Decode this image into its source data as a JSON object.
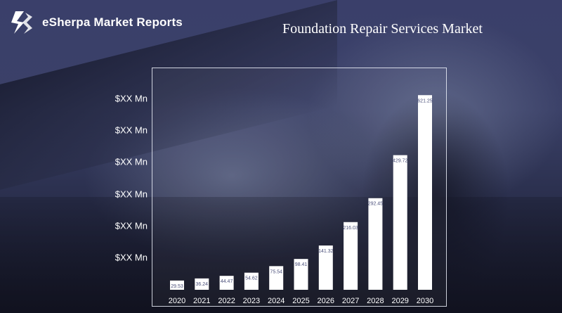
{
  "brand": {
    "name": "eSherpa Market Reports"
  },
  "report_title": "Foundation Repair Services Market",
  "chart_data": {
    "type": "bar",
    "title": "Foundation Repair Services Market",
    "xlabel": "",
    "ylabel": "",
    "y_tick_labels": [
      "$XX Mn",
      "$XX Mn",
      "$XX Mn",
      "$XX Mn",
      "$XX Mn",
      "$XX Mn"
    ],
    "categories": [
      "2020",
      "2021",
      "2022",
      "2023",
      "2024",
      "2025",
      "2026",
      "2027",
      "2028",
      "2029",
      "2030"
    ],
    "values": [
      29.53,
      36.24,
      44.47,
      54.62,
      75.54,
      98.41,
      141.32,
      216.03,
      292.45,
      429.72,
      621.25
    ],
    "data_labels": [
      "29.53",
      "36.24",
      "44.47",
      "54.62",
      "75.54",
      "98.41",
      "141.32",
      "216.03",
      "292.45",
      "429.72",
      "621.25"
    ],
    "ylim": [
      0,
      660
    ],
    "grid": false,
    "legend": "none",
    "bar_color": "#ffffff",
    "label_color": "#4a4f7a"
  }
}
